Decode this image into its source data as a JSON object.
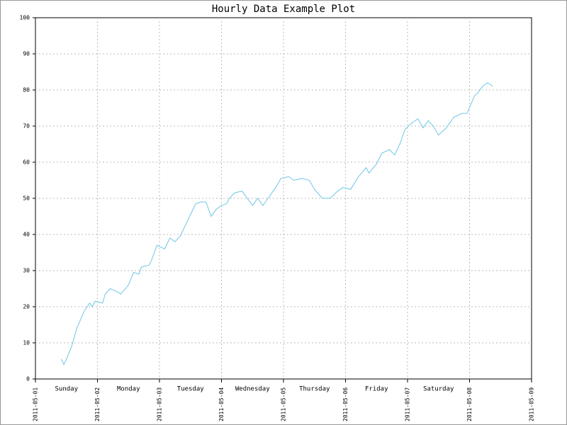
{
  "chart_data": {
    "type": "line",
    "title": "Hourly Data Example Plot",
    "x": [
      10,
      11,
      12,
      14,
      16,
      19,
      21,
      22,
      23,
      26,
      27,
      29,
      32,
      33,
      36,
      38,
      40,
      41,
      44,
      45,
      47,
      50,
      52,
      54,
      56,
      59,
      62,
      64,
      66,
      68,
      70,
      72,
      74,
      75,
      77,
      80,
      81,
      82,
      84,
      86,
      88,
      90,
      93,
      95,
      98,
      100,
      103,
      106,
      108,
      111,
      114,
      117,
      119,
      122,
      125,
      128,
      129,
      132,
      134,
      137,
      139,
      141,
      143,
      145,
      147,
      148,
      150,
      152,
      154,
      156,
      159,
      162,
      165,
      167,
      170,
      171,
      173,
      175,
      177
    ],
    "series": [
      {
        "color": "#6ec6e6",
        "values": [
          5.5,
          4,
          5.5,
          9,
          14,
          19,
          21,
          20,
          21.5,
          21,
          23.5,
          25,
          24,
          23.5,
          26,
          29.5,
          29,
          31,
          31.5,
          33,
          37,
          36,
          39,
          38,
          39.5,
          44,
          48.5,
          49,
          49,
          45,
          47,
          48,
          48.5,
          50,
          51.5,
          52,
          51,
          50,
          48,
          50,
          48,
          50,
          53,
          55.5,
          56,
          55,
          55.5,
          55,
          52.5,
          50,
          50,
          52,
          53,
          52.5,
          56,
          58.5,
          57,
          59.5,
          62.5,
          63.5,
          62,
          65,
          69,
          70.5,
          71.5,
          72,
          69.5,
          71.5,
          70,
          67.5,
          69.5,
          72.5,
          73.5,
          73.5,
          78.5,
          79,
          81,
          82,
          81
        ]
      }
    ],
    "xlim": [
      0,
      192
    ],
    "xticks": [
      {
        "value": 0,
        "label": "2011-05-01"
      },
      {
        "value": 24,
        "label": "2011-05-02"
      },
      {
        "value": 48,
        "label": "2011-05-03"
      },
      {
        "value": 72,
        "label": "2011-05-04"
      },
      {
        "value": 96,
        "label": "2011-05-05"
      },
      {
        "value": 120,
        "label": "2011-05-06"
      },
      {
        "value": 144,
        "label": "2011-05-07"
      },
      {
        "value": 168,
        "label": "2011-05-08"
      },
      {
        "value": 192,
        "label": "2011-05-09"
      }
    ],
    "day_labels": [
      {
        "value": 12,
        "label": "Sunday"
      },
      {
        "value": 36,
        "label": "Monday"
      },
      {
        "value": 60,
        "label": "Tuesday"
      },
      {
        "value": 84,
        "label": "Wednesday"
      },
      {
        "value": 108,
        "label": "Thursday"
      },
      {
        "value": 132,
        "label": "Friday"
      },
      {
        "value": 156,
        "label": "Saturday"
      }
    ],
    "ylim": [
      0,
      100
    ],
    "yticks": [
      0,
      10,
      20,
      30,
      40,
      50,
      60,
      70,
      80,
      90,
      100
    ],
    "grid": true
  }
}
